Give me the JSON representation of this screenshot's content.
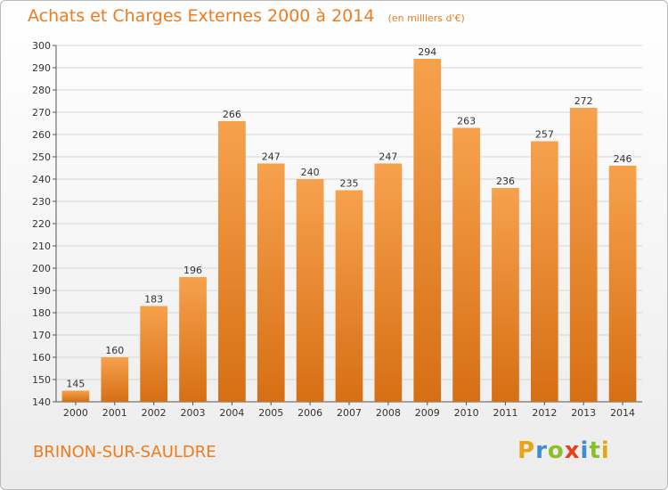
{
  "header": {
    "title": "Achats et Charges Externes 2000 à 2014",
    "unit": "(en milliers d'€)"
  },
  "commune": "BRINON-SUR-SAULDRE",
  "logo": {
    "letters": [
      "P",
      "r",
      "o",
      "x",
      "i",
      "t",
      "i"
    ],
    "colors": [
      "#e8a417",
      "#3d8cd6",
      "#8bbf2a",
      "#e8401c",
      "#3d8cd6",
      "#8bbf2a",
      "#e8a417"
    ]
  },
  "colors": {
    "bar_top": "#f7a14d",
    "bar_bottom": "#d66f14",
    "grid": "#d6d6d6",
    "accent": "#f07a1c"
  },
  "chart_data": {
    "type": "bar",
    "title": "Achats et Charges Externes 2000 à 2014",
    "xlabel": "",
    "ylabel": "",
    "categories": [
      "2000",
      "2001",
      "2002",
      "2003",
      "2004",
      "2005",
      "2006",
      "2007",
      "2008",
      "2009",
      "2010",
      "2011",
      "2012",
      "2013",
      "2014"
    ],
    "values": [
      145,
      160,
      183,
      196,
      266,
      247,
      240,
      235,
      247,
      294,
      263,
      236,
      257,
      272,
      246
    ],
    "ylim": [
      140,
      300
    ],
    "yticks": [
      140,
      150,
      160,
      170,
      180,
      190,
      200,
      210,
      220,
      230,
      240,
      250,
      260,
      270,
      280,
      290,
      300
    ],
    "grid": true,
    "legend": "none"
  }
}
